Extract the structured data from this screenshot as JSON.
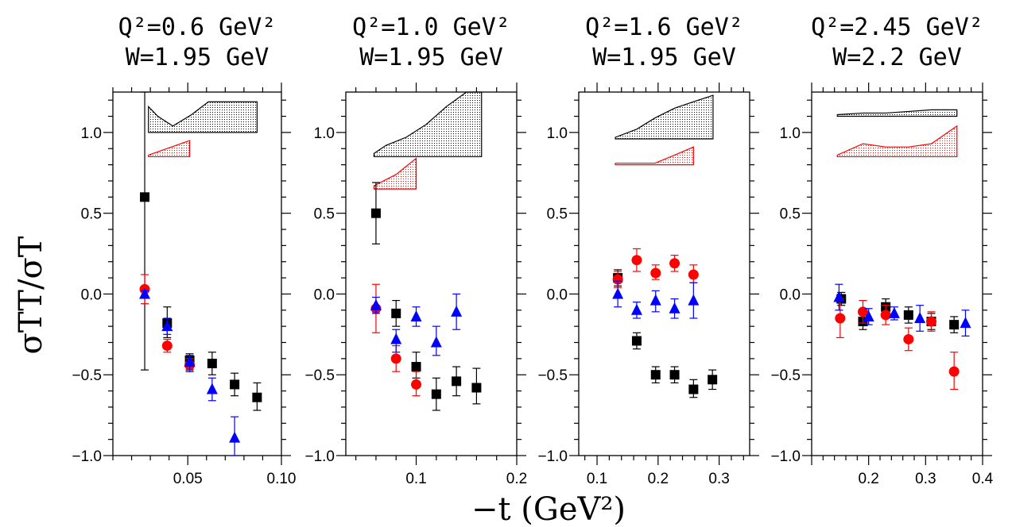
{
  "figure": {
    "xlabel": "−t (GeV²)",
    "ylabel": "σTT/σT",
    "colors": {
      "black": "#000000",
      "red": "#ff0000",
      "blue": "#0000ff"
    },
    "marker_shapes": {
      "black": "square",
      "red": "circle",
      "blue": "triangle"
    }
  },
  "chart_data": [
    {
      "type": "scatter",
      "title_q2": "Q²=0.6  GeV²",
      "title_w": "W=1.95  GeV",
      "xlim": [
        0.01,
        0.1
      ],
      "ylim": [
        -1.0,
        1.25
      ],
      "xticks": [
        0.05,
        0.1
      ],
      "xtick_labels": [
        "0.05",
        "0.10"
      ],
      "yticks": [
        1.0,
        0.5,
        0.0,
        -0.5,
        -1.0
      ],
      "ytick_labels": [
        "1.0",
        "0.5",
        "0.0",
        "−0.5",
        "−1.0"
      ],
      "series": [
        {
          "color": "black",
          "marker": "square",
          "points": [
            [
              0.027,
              0.6,
              -0.47,
              1.25
            ],
            [
              0.039,
              -0.18,
              -0.27,
              -0.08
            ],
            [
              0.051,
              -0.41,
              -0.47,
              -0.37
            ],
            [
              0.063,
              -0.43,
              -0.5,
              -0.36
            ],
            [
              0.075,
              -0.56,
              -0.63,
              -0.49
            ],
            [
              0.087,
              -0.64,
              -0.72,
              -0.55
            ]
          ]
        },
        {
          "color": "red",
          "marker": "circle",
          "points": [
            [
              0.027,
              0.03,
              -0.06,
              0.12
            ],
            [
              0.039,
              -0.32,
              -0.36,
              -0.28
            ],
            [
              0.051,
              -0.44,
              -0.48,
              -0.4
            ]
          ]
        },
        {
          "color": "blue",
          "marker": "triangle",
          "points": [
            [
              0.027,
              0.0,
              -0.02,
              0.02
            ],
            [
              0.039,
              -0.2,
              -0.25,
              -0.15
            ],
            [
              0.051,
              -0.42,
              -0.48,
              -0.38
            ],
            [
              0.063,
              -0.59,
              -0.66,
              -0.52
            ],
            [
              0.075,
              -0.89,
              -1.0,
              -0.76
            ]
          ]
        }
      ],
      "systematic_bands": [
        {
          "color": "black",
          "base": 1.0,
          "x": [
            0.029,
            0.034,
            0.042,
            0.052,
            0.061,
            0.087
          ],
          "top": [
            1.16,
            1.1,
            1.04,
            1.11,
            1.19,
            1.19
          ]
        },
        {
          "color": "red",
          "base": 0.85,
          "x": [
            0.029,
            0.051
          ],
          "top": [
            0.86,
            0.95
          ]
        }
      ]
    },
    {
      "type": "scatter",
      "title_q2": "Q²=1.0  GeV²",
      "title_w": "W=1.95  GeV",
      "xlim": [
        0.03,
        0.2
      ],
      "ylim": [
        -1.0,
        1.25
      ],
      "xticks": [
        0.1,
        0.2
      ],
      "xtick_labels": [
        "0.1",
        "0.2"
      ],
      "yticks": [
        1.0,
        0.5,
        0.0,
        -0.5,
        -1.0
      ],
      "ytick_labels": [
        "1.0",
        "0.5",
        "0.0",
        "−0.5",
        "−1.0"
      ],
      "series": [
        {
          "color": "black",
          "marker": "square",
          "points": [
            [
              0.06,
              0.5,
              0.31,
              0.69
            ],
            [
              0.08,
              -0.12,
              -0.2,
              -0.04
            ],
            [
              0.1,
              -0.45,
              -0.52,
              -0.36
            ],
            [
              0.12,
              -0.62,
              -0.72,
              -0.52
            ],
            [
              0.14,
              -0.54,
              -0.63,
              -0.45
            ],
            [
              0.16,
              -0.58,
              -0.68,
              -0.46
            ]
          ]
        },
        {
          "color": "red",
          "marker": "circle",
          "points": [
            [
              0.06,
              -0.09,
              -0.24,
              0.06
            ],
            [
              0.08,
              -0.4,
              -0.48,
              -0.32
            ],
            [
              0.1,
              -0.56,
              -0.63,
              -0.48
            ]
          ]
        },
        {
          "color": "blue",
          "marker": "triangle",
          "points": [
            [
              0.06,
              -0.07,
              -0.12,
              -0.02
            ],
            [
              0.08,
              -0.28,
              -0.36,
              -0.22
            ],
            [
              0.1,
              -0.14,
              -0.2,
              -0.08
            ],
            [
              0.12,
              -0.3,
              -0.38,
              -0.2
            ],
            [
              0.14,
              -0.11,
              -0.22,
              0.0
            ]
          ]
        }
      ],
      "systematic_bands": [
        {
          "color": "black",
          "base": 0.85,
          "x": [
            0.058,
            0.07,
            0.09,
            0.11,
            0.13,
            0.15,
            0.165
          ],
          "top": [
            0.87,
            0.92,
            0.97,
            1.05,
            1.16,
            1.25,
            1.25
          ]
        },
        {
          "color": "red",
          "base": 0.65,
          "x": [
            0.058,
            0.08,
            0.1
          ],
          "top": [
            0.67,
            0.74,
            0.84
          ]
        }
      ]
    },
    {
      "type": "scatter",
      "title_q2": "Q²=1.6  GeV²",
      "title_w": "W=1.95  GeV",
      "xlim": [
        0.07,
        0.35
      ],
      "ylim": [
        -1.0,
        1.25
      ],
      "xticks": [
        0.1,
        0.2,
        0.3
      ],
      "xtick_labels": [
        "0.1",
        "0.2",
        "0.3"
      ],
      "yticks": [
        1.0,
        0.5,
        0.0,
        -0.5,
        -1.0
      ],
      "ytick_labels": [
        "1.0",
        "0.5",
        "0.0",
        "−0.5",
        "−1.0"
      ],
      "series": [
        {
          "color": "black",
          "marker": "square",
          "points": [
            [
              0.134,
              0.1,
              0.05,
              0.15
            ],
            [
              0.165,
              -0.29,
              -0.34,
              -0.24
            ],
            [
              0.196,
              -0.5,
              -0.55,
              -0.45
            ],
            [
              0.227,
              -0.5,
              -0.55,
              -0.45
            ],
            [
              0.258,
              -0.59,
              -0.64,
              -0.53
            ],
            [
              0.289,
              -0.53,
              -0.59,
              -0.47
            ]
          ]
        },
        {
          "color": "red",
          "marker": "circle",
          "points": [
            [
              0.134,
              0.09,
              0.04,
              0.14
            ],
            [
              0.165,
              0.21,
              0.14,
              0.28
            ],
            [
              0.196,
              0.13,
              0.09,
              0.18
            ],
            [
              0.227,
              0.19,
              0.14,
              0.24
            ],
            [
              0.258,
              0.12,
              0.07,
              0.18
            ]
          ]
        },
        {
          "color": "blue",
          "marker": "triangle",
          "points": [
            [
              0.134,
              0.0,
              -0.08,
              0.08
            ],
            [
              0.165,
              -0.1,
              -0.15,
              -0.05
            ],
            [
              0.196,
              -0.04,
              -0.11,
              0.02
            ],
            [
              0.227,
              -0.09,
              -0.15,
              -0.03
            ],
            [
              0.258,
              -0.04,
              -0.15,
              0.07
            ]
          ]
        }
      ],
      "systematic_bands": [
        {
          "color": "black",
          "base": 0.96,
          "x": [
            0.13,
            0.165,
            0.195,
            0.227,
            0.258,
            0.29
          ],
          "top": [
            0.97,
            1.02,
            1.09,
            1.15,
            1.19,
            1.23
          ]
        },
        {
          "color": "red",
          "base": 0.8,
          "x": [
            0.13,
            0.165,
            0.195,
            0.227,
            0.258
          ],
          "top": [
            0.81,
            0.81,
            0.81,
            0.86,
            0.91
          ]
        }
      ]
    },
    {
      "type": "scatter",
      "title_q2": "Q²=2.45  GeV²",
      "title_w": "W=2.2  GeV",
      "xlim": [
        0.1,
        0.4
      ],
      "ylim": [
        -1.0,
        1.25
      ],
      "xticks": [
        0.2,
        0.3,
        0.4
      ],
      "xtick_labels": [
        "0.2",
        "0.3",
        "0.4"
      ],
      "yticks": [
        1.0,
        0.5,
        0.0,
        -0.5,
        -1.0
      ],
      "ytick_labels": [
        "1.0",
        "0.5",
        "0.0",
        "−0.5",
        "−1.0"
      ],
      "series": [
        {
          "color": "black",
          "marker": "square",
          "points": [
            [
              0.152,
              -0.03,
              -0.07,
              0.01
            ],
            [
              0.19,
              -0.17,
              -0.22,
              -0.12
            ],
            [
              0.23,
              -0.08,
              -0.13,
              -0.03
            ],
            [
              0.27,
              -0.13,
              -0.18,
              -0.08
            ],
            [
              0.31,
              -0.17,
              -0.22,
              -0.12
            ],
            [
              0.35,
              -0.19,
              -0.24,
              -0.14
            ]
          ]
        },
        {
          "color": "red",
          "marker": "circle",
          "points": [
            [
              0.15,
              -0.15,
              -0.27,
              -0.03
            ],
            [
              0.19,
              -0.11,
              -0.18,
              -0.04
            ],
            [
              0.23,
              -0.13,
              -0.19,
              -0.07
            ],
            [
              0.27,
              -0.28,
              -0.35,
              -0.21
            ],
            [
              0.31,
              -0.17,
              -0.23,
              -0.11
            ],
            [
              0.35,
              -0.48,
              -0.59,
              -0.36
            ]
          ]
        },
        {
          "color": "blue",
          "marker": "triangle",
          "points": [
            [
              0.148,
              -0.02,
              -0.1,
              0.06
            ],
            [
              0.2,
              -0.14,
              -0.19,
              -0.09
            ],
            [
              0.245,
              -0.12,
              -0.16,
              -0.08
            ],
            [
              0.29,
              -0.15,
              -0.23,
              -0.07
            ],
            [
              0.37,
              -0.18,
              -0.26,
              -0.1
            ]
          ]
        }
      ],
      "systematic_bands": [
        {
          "color": "black",
          "base": 1.1,
          "x": [
            0.145,
            0.19,
            0.23,
            0.27,
            0.31,
            0.355
          ],
          "top": [
            1.11,
            1.12,
            1.12,
            1.13,
            1.14,
            1.14
          ]
        },
        {
          "color": "red",
          "base": 0.85,
          "x": [
            0.145,
            0.19,
            0.23,
            0.27,
            0.31,
            0.355
          ],
          "top": [
            0.86,
            0.93,
            0.91,
            0.91,
            0.93,
            1.04
          ]
        }
      ]
    }
  ]
}
